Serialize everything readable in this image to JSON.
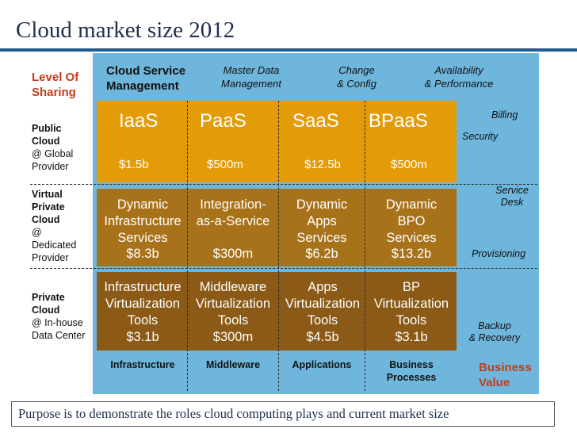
{
  "title": "Cloud market size 2012",
  "level_of_sharing": [
    "Level Of",
    "Sharing"
  ],
  "rows": [
    {
      "name": "Public",
      "name2": "Cloud",
      "detail": "@ Global",
      "detail2": "Provider"
    },
    {
      "name": "Virtual",
      "name2": "Private",
      "name3": "Cloud",
      "detail": "@",
      "detail2": "Dedicated",
      "detail3": "Provider"
    },
    {
      "name": "Private",
      "name2": "Cloud",
      "detail": "@ In-house",
      "detail2": "Data Center"
    }
  ],
  "header": {
    "csm1": "Cloud Service",
    "csm2": "Management",
    "items": [
      {
        "l1": "Master Data",
        "l2": "Management"
      },
      {
        "l1": "Change",
        "l2": "& Config"
      },
      {
        "l1": "Availability",
        "l2": "& Performance"
      }
    ]
  },
  "public": {
    "services": [
      "IaaS",
      "PaaS",
      "SaaS",
      "BPaaS"
    ],
    "values": [
      "$1.5b",
      "$500m",
      "$12.5b",
      "$500m"
    ]
  },
  "virtual": {
    "cells": [
      {
        "l1": "Dynamic",
        "l2": "Infrastructure",
        "l3": "Services",
        "value": "$8.3b"
      },
      {
        "l1": "Integration-",
        "l2": "as-a-Service",
        "l3": "",
        "value": "$300m"
      },
      {
        "l1": "Dynamic",
        "l2": "Apps",
        "l3": "Services",
        "value": "$6.2b"
      },
      {
        "l1": "Dynamic",
        "l2": "BPO",
        "l3": "Services",
        "value": "$13.2b"
      }
    ]
  },
  "private": {
    "cells": [
      {
        "l1": "Infrastructure",
        "l2": "Virtualization",
        "l3": "Tools",
        "value": "$3.1b"
      },
      {
        "l1": "Middleware",
        "l2": "Virtualization",
        "l3": "Tools",
        "value": "$300m"
      },
      {
        "l1": "Apps",
        "l2": "Virtualization",
        "l3": "Tools",
        "value": "$4.5b"
      },
      {
        "l1": "BP",
        "l2": "Virtualization",
        "l3": "Tools",
        "value": "$3.1b"
      }
    ]
  },
  "bottom": [
    {
      "l1": "Infrastructure",
      "l2": ""
    },
    {
      "l1": "Middleware",
      "l2": ""
    },
    {
      "l1": "Applications",
      "l2": ""
    },
    {
      "l1": "Business",
      "l2": "Processes"
    }
  ],
  "right": {
    "billing": "Billing",
    "security": "Security",
    "service_desk1": "Service",
    "service_desk2": "Desk",
    "provisioning": "Provisioning",
    "backup1": "Backup",
    "backup2": "& Recovery"
  },
  "business_value": [
    "Business",
    "Value"
  ],
  "purpose": "Purpose is to demonstrate the roles cloud computing plays and current market size",
  "colors": {
    "panel": "#6fb6dc",
    "band_public": "#e49b08",
    "band_virtual": "#a8721a",
    "band_private": "#8a5a16",
    "accent_red": "#c43c19"
  }
}
